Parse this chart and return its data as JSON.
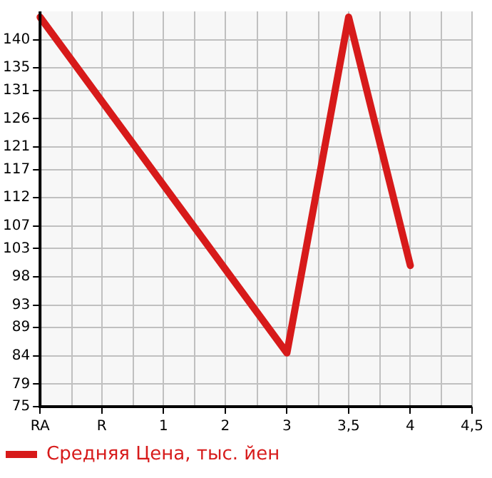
{
  "chart_data": {
    "type": "line",
    "categories": [
      "RA",
      "R",
      "1",
      "2",
      "3",
      "3,5",
      "4",
      "4,5"
    ],
    "series": [
      {
        "name": "Средняя Цена, тыс. йен",
        "color": "#d71a1a",
        "values": [
          144,
          null,
          null,
          null,
          84.5,
          144,
          100,
          null
        ]
      }
    ],
    "ylim": [
      75,
      145
    ],
    "yticks": [
      75,
      79,
      84,
      89,
      93,
      98,
      103,
      107,
      112,
      117,
      121,
      126,
      131,
      135,
      140
    ],
    "grid": true,
    "legend": "bottom left",
    "marker": "none",
    "line_style": "solid"
  }
}
